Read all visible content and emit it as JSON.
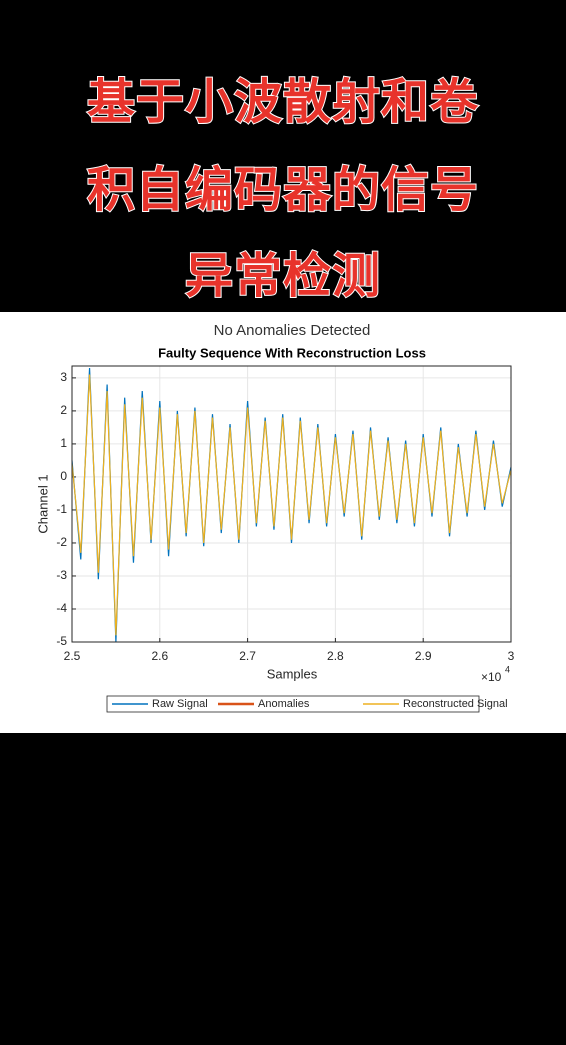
{
  "header": {
    "lines": [
      "基于小波散射和卷",
      "积自编码器的信号",
      "异常检测"
    ]
  },
  "chart_data": {
    "type": "line",
    "title": "No Anomalies Detected",
    "subtitle": "Faulty Sequence With Reconstruction Loss",
    "xlabel": "Samples",
    "ylabel": "Channel 1",
    "x_multiplier": {
      "base": "×10",
      "exponent": "4"
    },
    "x": [
      2.5,
      2.51,
      2.52,
      2.53,
      2.54,
      2.55,
      2.56,
      2.57,
      2.58,
      2.59,
      2.6,
      2.61,
      2.62,
      2.63,
      2.64,
      2.65,
      2.66,
      2.67,
      2.68,
      2.69,
      2.7,
      2.71,
      2.72,
      2.73,
      2.74,
      2.75,
      2.76,
      2.77,
      2.78,
      2.79,
      2.8,
      2.81,
      2.82,
      2.83,
      2.84,
      2.85,
      2.86,
      2.87,
      2.88,
      2.89,
      2.9,
      2.91,
      2.92,
      2.93,
      2.94,
      2.95,
      2.96,
      2.97,
      2.98,
      2.99,
      3
    ],
    "series": [
      {
        "name": "Raw Signal",
        "color": "#0072bd",
        "values": [
          0.5,
          -2.5,
          3.3,
          -3.1,
          2.8,
          -5.0,
          2.4,
          -2.6,
          2.6,
          -2.0,
          2.3,
          -2.4,
          2.0,
          -1.8,
          2.1,
          -2.1,
          1.9,
          -1.7,
          1.6,
          -2.0,
          2.3,
          -1.5,
          1.8,
          -1.6,
          1.9,
          -2.0,
          1.8,
          -1.4,
          1.6,
          -1.5,
          1.3,
          -1.2,
          1.4,
          -1.9,
          1.5,
          -1.3,
          1.2,
          -1.4,
          1.1,
          -1.5,
          1.3,
          -1.2,
          1.5,
          -1.8,
          1.0,
          -1.2,
          1.4,
          -1.0,
          1.1,
          -0.9,
          0.3
        ]
      },
      {
        "name": "Anomalies",
        "color": "#d95319",
        "values": [
          null,
          null,
          null,
          null,
          null,
          null,
          null,
          null,
          null,
          null,
          null,
          null,
          null,
          null,
          null,
          null,
          null,
          null,
          null,
          null,
          null,
          null,
          null,
          null,
          null,
          null,
          null,
          null,
          null,
          null,
          null,
          null,
          null,
          null,
          null,
          null,
          null,
          null,
          null,
          null,
          null,
          null,
          null,
          null,
          null,
          null,
          null,
          null,
          null,
          null,
          null
        ]
      },
      {
        "name": "Reconstructed Signal",
        "color": "#edb120",
        "values": [
          0.4,
          -2.3,
          3.1,
          -2.9,
          2.6,
          -4.8,
          2.2,
          -2.4,
          2.4,
          -1.9,
          2.1,
          -2.2,
          1.9,
          -1.7,
          2.0,
          -2.0,
          1.8,
          -1.6,
          1.5,
          -1.9,
          2.1,
          -1.4,
          1.7,
          -1.5,
          1.8,
          -1.9,
          1.7,
          -1.3,
          1.5,
          -1.4,
          1.2,
          -1.1,
          1.3,
          -1.8,
          1.4,
          -1.2,
          1.1,
          -1.3,
          1.0,
          -1.4,
          1.2,
          -1.1,
          1.4,
          -1.7,
          0.9,
          -1.1,
          1.3,
          -0.9,
          1.0,
          -0.8,
          0.2
        ]
      }
    ],
    "xlim": [
      2.5,
      3
    ],
    "ylim": [
      -5,
      3.36
    ],
    "xticks": [
      2.5,
      2.6,
      2.7,
      2.8,
      2.9,
      3
    ],
    "yticks": [
      -5,
      -4,
      -3,
      -2,
      -1,
      0,
      1,
      2,
      3
    ],
    "grid": true
  }
}
